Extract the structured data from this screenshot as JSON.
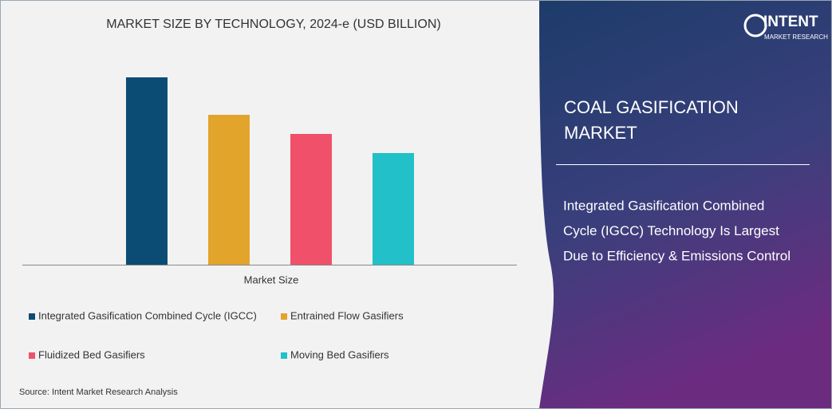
{
  "chart_data": {
    "type": "bar",
    "title": "MARKET SIZE BY TECHNOLOGY, 2024-e (USD BILLION)",
    "x_label": "Market Size",
    "ylim": [
      0,
      250
    ],
    "series": [
      {
        "name": "Integrated Gasification Combined Cycle (IGCC)",
        "color": "#0b4c74",
        "values": [
          235
        ]
      },
      {
        "name": "Entrained Flow Gasifiers",
        "color": "#e3a42c",
        "values": [
          188
        ]
      },
      {
        "name": "Fluidized Bed Gasifiers",
        "color": "#f0506a",
        "values": [
          164
        ]
      },
      {
        "name": "Moving Bed Gasifiers",
        "color": "#22c0c8",
        "values": [
          140
        ]
      }
    ],
    "source": "Source:  Intent Market Research Analysis"
  },
  "panel": {
    "logo": "INTENT",
    "logo_sub": "MARKET RESEARCH",
    "heading": [
      "COAL GASIFICATION",
      "MARKET"
    ],
    "description": [
      "Integrated Gasification Combined",
      "Cycle (IGCC) Technology Is Largest",
      "Due to Efficiency & Emissions Control"
    ]
  }
}
